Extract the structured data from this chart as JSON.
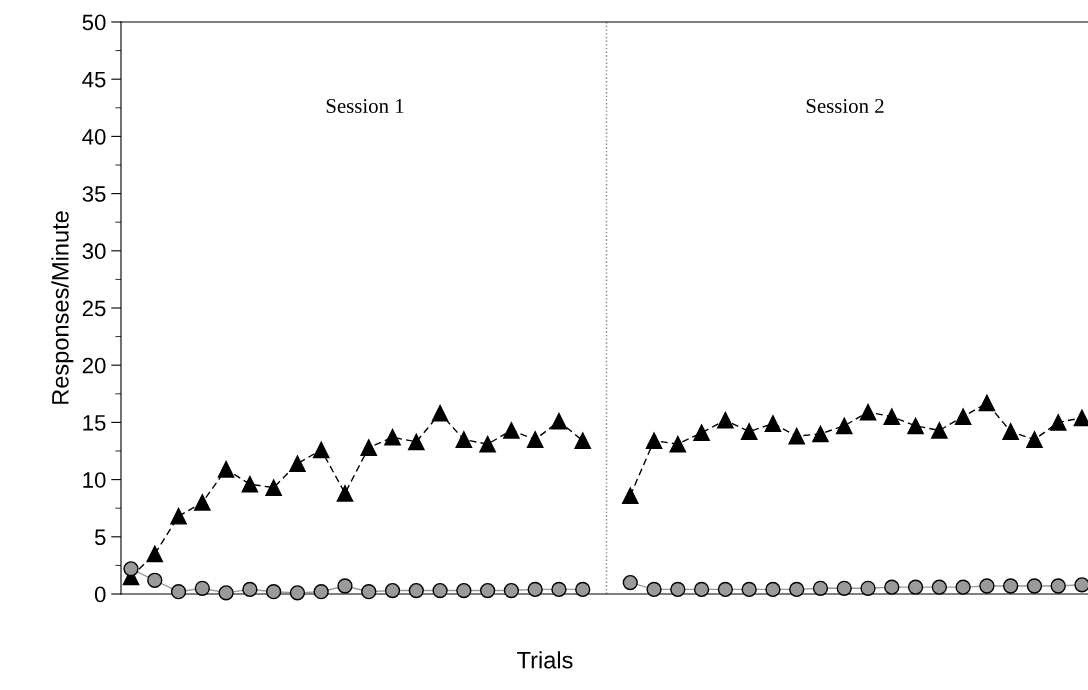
{
  "chart_data": {
    "type": "line",
    "xlabel": "Trials",
    "ylabel": "Responses/Minute",
    "categories": [
      null,
      null,
      null,
      null,
      null,
      null,
      null,
      null,
      null,
      null,
      null,
      null,
      null,
      null,
      null,
      null,
      null,
      null,
      null,
      null,
      null,
      null,
      null,
      null,
      null,
      null,
      null,
      null,
      null,
      null,
      null,
      null,
      null,
      null,
      null,
      null,
      null,
      null,
      null,
      null,
      null
    ],
    "series": [
      {
        "color": "#000000",
        "marker": "triangle",
        "line_style": "dashed",
        "values": [
          1.5,
          3.5,
          6.8,
          8.0,
          10.9,
          9.6,
          9.3,
          11.4,
          12.6,
          8.8,
          12.8,
          13.7,
          13.3,
          15.8,
          13.5,
          13.1,
          14.3,
          13.5,
          15.1,
          13.4,
          null,
          null,
          null,
          null,
          null,
          null,
          null,
          null,
          null,
          null,
          null,
          null,
          null,
          null,
          null,
          null,
          null,
          null,
          null,
          null,
          null
        ]
      },
      {
        "color": "#000000",
        "marker": "triangle",
        "line_style": "dashed",
        "values": [
          null,
          null,
          null,
          null,
          null,
          null,
          null,
          null,
          null,
          null,
          null,
          null,
          null,
          null,
          null,
          null,
          null,
          null,
          null,
          null,
          null,
          8.6,
          13.4,
          13.1,
          14.1,
          15.2,
          14.2,
          14.9,
          13.8,
          14.0,
          14.7,
          15.9,
          15.5,
          14.7,
          14.3,
          15.5,
          16.7,
          14.2,
          13.5,
          15.0,
          15.4
        ]
      },
      {
        "color": "#9a9a9a",
        "marker": "circle",
        "line_style": "solid",
        "values": [
          2.2,
          1.2,
          0.2,
          0.5,
          0.1,
          0.4,
          0.2,
          0.1,
          0.2,
          0.7,
          0.2,
          0.3,
          0.3,
          0.3,
          0.3,
          0.3,
          0.3,
          0.4,
          0.4,
          0.4,
          null,
          null,
          null,
          null,
          null,
          null,
          null,
          null,
          null,
          null,
          null,
          null,
          null,
          null,
          null,
          null,
          null,
          null,
          null,
          null,
          null
        ]
      },
      {
        "color": "#9a9a9a",
        "marker": "circle",
        "line_style": "solid",
        "values": [
          null,
          null,
          null,
          null,
          null,
          null,
          null,
          null,
          null,
          null,
          null,
          null,
          null,
          null,
          null,
          null,
          null,
          null,
          null,
          null,
          null,
          1.0,
          0.4,
          0.4,
          0.4,
          0.4,
          0.4,
          0.4,
          0.4,
          0.5,
          0.5,
          0.5,
          0.6,
          0.6,
          0.6,
          0.6,
          0.7,
          0.7,
          0.7,
          0.7,
          0.8
        ]
      }
    ],
    "ylim": [
      0,
      50
    ],
    "yticks": [
      0,
      {
        "value": 2.5,
        "label": null
      },
      5,
      {
        "value": 7.5,
        "label": null
      },
      10,
      {
        "value": 12.5,
        "label": null
      },
      15,
      {
        "value": 17.5,
        "label": null
      },
      20,
      {
        "value": 22.5,
        "label": null
      },
      25,
      {
        "value": 27.5,
        "label": null
      },
      30,
      {
        "value": 32.5,
        "label": null
      },
      35,
      {
        "value": 37.5,
        "label": null
      },
      40,
      {
        "value": 42.5,
        "label": null
      },
      45,
      {
        "value": 47.5,
        "label": null
      },
      50
    ],
    "tick_labels": "y",
    "grid": false,
    "annotations": [
      "Session 1",
      "Session 2"
    ]
  }
}
